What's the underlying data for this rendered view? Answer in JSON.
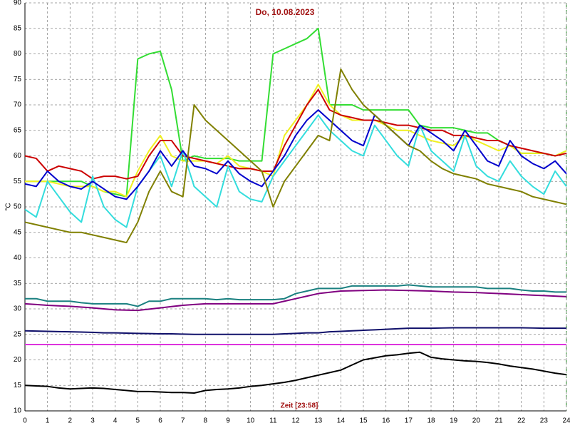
{
  "chart_data": {
    "type": "line",
    "title": "Do, 10.08.2023",
    "x_label": "Zeit [23:58]",
    "y_label": "°C",
    "x": [
      0,
      0.5,
      1,
      1.5,
      2,
      2.5,
      3,
      3.5,
      4,
      4.5,
      5,
      5.5,
      6,
      6.5,
      7,
      7.5,
      8,
      8.5,
      9,
      9.5,
      10,
      10.5,
      11,
      11.5,
      12,
      12.5,
      13,
      13.5,
      14,
      14.5,
      15,
      15.5,
      16,
      16.5,
      17,
      17.5,
      18,
      18.5,
      19,
      19.5,
      20,
      20.5,
      21,
      21.5,
      22,
      22.5,
      23,
      23.5,
      24
    ],
    "xlim": [
      0,
      24
    ],
    "xticks": [
      0,
      1,
      2,
      3,
      4,
      5,
      6,
      7,
      8,
      9,
      10,
      11,
      12,
      13,
      14,
      15,
      16,
      17,
      18,
      19,
      20,
      21,
      22,
      23,
      24
    ],
    "ylim": [
      10,
      90
    ],
    "yticks": [
      10,
      15,
      20,
      25,
      30,
      35,
      40,
      45,
      50,
      55,
      60,
      65,
      70,
      75,
      80,
      85,
      90
    ],
    "grid": true,
    "series": [
      {
        "color": "#33dd33",
        "values": [
          55,
          55,
          55,
          55,
          55,
          55,
          54,
          53,
          52.5,
          52,
          79,
          80,
          80.5,
          73,
          59,
          60,
          59.5,
          59.5,
          59.5,
          59,
          59,
          59,
          80,
          81,
          82,
          83,
          85,
          70,
          70,
          70,
          69,
          69,
          69,
          69,
          69,
          66,
          65.5,
          65.5,
          65.5,
          65,
          64.5,
          64.5,
          63,
          62,
          60.5,
          60.5,
          60.5,
          60,
          61
        ]
      },
      {
        "color": "#f0f020",
        "values": [
          55,
          55,
          55,
          54.5,
          54,
          54,
          54,
          53,
          53,
          52,
          57,
          61,
          64,
          60,
          59,
          59,
          59,
          58.5,
          60,
          58,
          57.5,
          57,
          56,
          64,
          67,
          70,
          74,
          70,
          68,
          67,
          67,
          67,
          66,
          65,
          65,
          64,
          63,
          62.5,
          62,
          64,
          63,
          62,
          61,
          62,
          60.5,
          60.5,
          60.5,
          60,
          61
        ]
      },
      {
        "color": "#cc0000",
        "values": [
          60,
          59.5,
          57,
          58,
          57.5,
          57,
          55.5,
          56,
          56,
          55.5,
          56,
          60,
          63,
          63,
          60,
          59.5,
          59,
          58.5,
          58,
          57.5,
          57.5,
          57,
          57,
          62,
          66,
          70,
          73,
          69,
          68,
          67.5,
          67,
          67,
          66.5,
          66,
          66,
          65.5,
          65,
          65,
          64,
          64,
          63.5,
          63,
          63,
          62,
          61.5,
          61,
          60.5,
          60,
          60.5
        ]
      },
      {
        "color": "#33dddd",
        "values": [
          49.5,
          48,
          55,
          52,
          49,
          47,
          56,
          50,
          47.5,
          46,
          54,
          57,
          60,
          54,
          61,
          54,
          52,
          50,
          58,
          53,
          51.5,
          51,
          56,
          59,
          62,
          65,
          68,
          65,
          63,
          61,
          60,
          66,
          63,
          60,
          58,
          66,
          61,
          59,
          57,
          64,
          58,
          56,
          55,
          59,
          56,
          54,
          52.5,
          57,
          54
        ]
      },
      {
        "color": "#0000cc",
        "values": [
          54.5,
          54,
          57,
          55,
          54,
          53.5,
          55,
          53.5,
          52,
          51.5,
          54,
          57,
          61,
          58,
          61,
          58,
          57.5,
          56.5,
          59,
          56.5,
          55,
          54,
          57,
          60,
          64,
          67,
          69,
          67,
          65,
          63,
          62,
          68,
          66,
          64,
          62,
          66,
          64.5,
          63,
          61,
          65,
          62,
          59,
          58,
          63,
          60,
          58.5,
          57.5,
          59,
          56.5
        ]
      },
      {
        "color": "#808000",
        "values": [
          47,
          46.5,
          46,
          45.5,
          45,
          45,
          44.5,
          44,
          43.5,
          43,
          47,
          53,
          57,
          53,
          52,
          70,
          67,
          65,
          63,
          61,
          59,
          57,
          50,
          55,
          58,
          61,
          64,
          63,
          77,
          73,
          70,
          68,
          66,
          64,
          62,
          61,
          59,
          57.5,
          56.5,
          56,
          55.5,
          54.5,
          54,
          53.5,
          53,
          52,
          51.5,
          51,
          50.5
        ]
      },
      {
        "color": "#1a8080",
        "values": [
          32,
          32,
          31.5,
          31.5,
          31.5,
          31.2,
          31,
          31,
          31,
          31,
          30.5,
          31.5,
          31.5,
          32,
          32,
          32,
          32,
          31.8,
          32,
          31.8,
          31.8,
          31.8,
          31.8,
          32,
          33,
          33.5,
          34,
          34,
          34,
          34.5,
          34.5,
          34.5,
          34.5,
          34.5,
          34.7,
          34.5,
          34.3,
          34.3,
          34.3,
          34.3,
          34.3,
          34,
          34,
          34,
          33.7,
          33.5,
          33.5,
          33.3,
          33.3
        ]
      },
      {
        "color": "#800080",
        "values": [
          31,
          30.85,
          30.7,
          30.6,
          30.5,
          30.35,
          30.2,
          30,
          29.8,
          29.75,
          29.7,
          29.95,
          30.2,
          30.45,
          30.7,
          30.85,
          31,
          31,
          31,
          31,
          31,
          31,
          31,
          31.5,
          32,
          32.5,
          33,
          33.25,
          33.5,
          33.55,
          33.6,
          33.65,
          33.7,
          33.65,
          33.6,
          33.55,
          33.5,
          33.4,
          33.3,
          33.25,
          33.2,
          33.1,
          33,
          32.9,
          32.8,
          32.7,
          32.6,
          32.5,
          32.4
        ]
      },
      {
        "color": "#10106a",
        "values": [
          25.7,
          25.65,
          25.6,
          25.55,
          25.5,
          25.45,
          25.4,
          25.3,
          25.3,
          25.25,
          25.2,
          25.15,
          25.1,
          25.1,
          25.05,
          25,
          25,
          25,
          25,
          25,
          25,
          25,
          25,
          25.1,
          25.2,
          25.3,
          25.3,
          25.5,
          25.6,
          25.7,
          25.8,
          25.9,
          26,
          26.1,
          26.2,
          26.2,
          26.2,
          26.25,
          26.3,
          26.3,
          26.3,
          26.3,
          26.3,
          26.3,
          26.3,
          26.25,
          26.2,
          26.2,
          26.2
        ]
      },
      {
        "color": "#dd33dd",
        "values": [
          23,
          23,
          23,
          23,
          23,
          23,
          23,
          23,
          23,
          23,
          23,
          23,
          23,
          23,
          23,
          23,
          23,
          23,
          23,
          23,
          23,
          23,
          23,
          23,
          23,
          23,
          23,
          23,
          23,
          23,
          23,
          23,
          23,
          23,
          23,
          23,
          23,
          23,
          23,
          23,
          23,
          23,
          23,
          23,
          23,
          23,
          23,
          23,
          23
        ]
      },
      {
        "color": "#000000",
        "values": [
          15,
          14.9,
          14.8,
          14.5,
          14.3,
          14.4,
          14.5,
          14.4,
          14.2,
          14,
          13.8,
          13.8,
          13.7,
          13.6,
          13.6,
          13.5,
          14,
          14.2,
          14.3,
          14.5,
          14.8,
          15,
          15.3,
          15.6,
          16,
          16.5,
          17,
          17.5,
          18,
          19,
          20,
          20.4,
          20.8,
          21,
          21.3,
          21.5,
          20.5,
          20.2,
          20,
          19.8,
          19.7,
          19.5,
          19.2,
          18.8,
          18.5,
          18.2,
          17.8,
          17.4,
          17.1
        ]
      }
    ]
  }
}
